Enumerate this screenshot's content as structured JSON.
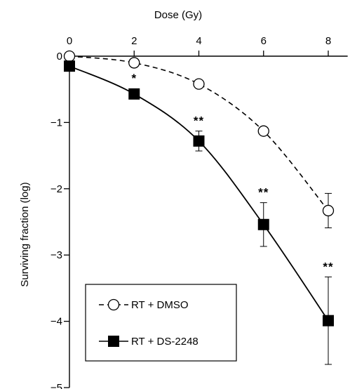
{
  "chart_data": {
    "type": "line",
    "xlabel": "Dose (Gy)",
    "ylabel": "Surviving fraction (log)",
    "x_axis_position": "top",
    "xlim": [
      0,
      8.6
    ],
    "ylim": [
      -5,
      0
    ],
    "x_ticks": [
      0,
      2,
      4,
      6,
      8
    ],
    "x_tick_labels": [
      "0",
      "2",
      "4",
      "6",
      "8"
    ],
    "y_ticks": [
      0,
      -1,
      -2,
      -3,
      -4,
      -5
    ],
    "y_tick_labels": [
      "0",
      "−1",
      "−2",
      "−3",
      "−4",
      "−5"
    ],
    "grid": false,
    "legend_position": "bottom-left",
    "series": [
      {
        "name": "RT + DMSO",
        "marker": "open-circle",
        "line_style": "dashed",
        "x": [
          0,
          2,
          4,
          6,
          8
        ],
        "y": [
          0,
          -0.1,
          -0.42,
          -1.13,
          -2.33
        ],
        "error": [
          0,
          0,
          0,
          0,
          0.26
        ],
        "annotations": [
          "",
          "",
          "",
          "",
          ""
        ]
      },
      {
        "name": "RT + DS-2248",
        "marker": "filled-square",
        "line_style": "solid",
        "x": [
          0,
          2,
          4,
          6,
          8
        ],
        "y": [
          -0.15,
          -0.57,
          -1.28,
          -2.54,
          -3.99
        ],
        "error": [
          0,
          0,
          0.15,
          0.33,
          0.66
        ],
        "annotations": [
          "",
          "*",
          "**",
          "**",
          "**"
        ]
      }
    ]
  }
}
